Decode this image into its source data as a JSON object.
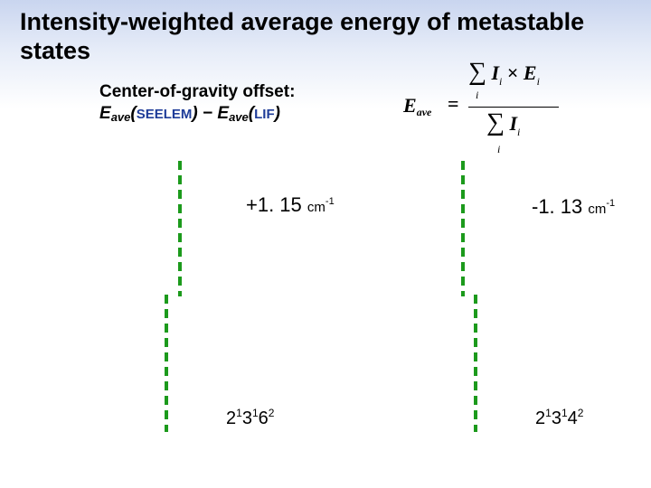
{
  "title": "Intensity-weighted average energy of metastable states",
  "subtitle": {
    "line1": "Center-of-gravity offset:",
    "e1": "E",
    "ave1": "ave",
    "open1": "(",
    "method1": "SEELEM",
    "close1": ")",
    "minus": " − ",
    "e2": "E",
    "ave2": "ave",
    "open2": "(",
    "method2": "LIF",
    "close2": ")"
  },
  "formula": {
    "lhs": "E",
    "lhs_sub": "ave",
    "equals": "=",
    "sum": "∑",
    "index": "i",
    "num_I": "I",
    "times": " × ",
    "num_E": "E",
    "den_I": "I"
  },
  "panels": [
    {
      "offset_value": "+1. 15",
      "unit": "cm",
      "unit_exp": "-1",
      "state": {
        "a": "2",
        "a_sup": "1",
        "b": "3",
        "b_sup": "1",
        "c": "6",
        "c_sup": "2"
      }
    },
    {
      "offset_value": "-1. 13",
      "unit": "cm",
      "unit_exp": "-1",
      "state": {
        "a": "2",
        "a_sup": "1",
        "b": "3",
        "b_sup": "1",
        "c": "4",
        "c_sup": "2"
      }
    }
  ],
  "colors": {
    "dashed_line": "#1c9a1c",
    "method_text": "#1f3d99"
  }
}
